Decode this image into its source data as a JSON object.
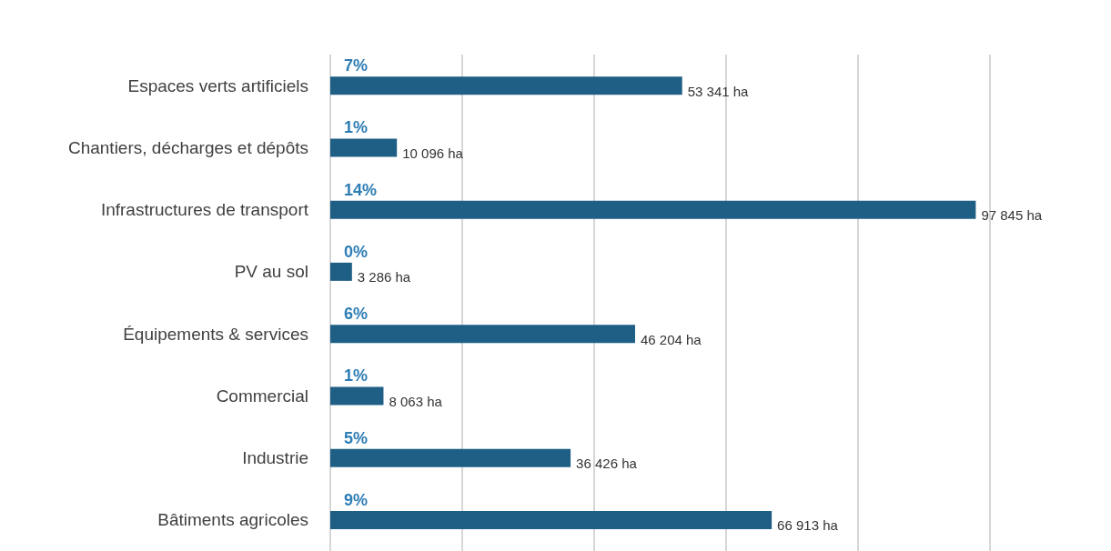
{
  "chart_data": {
    "type": "bar",
    "orientation": "horizontal",
    "categories": [
      "Espaces verts artificiels",
      "Chantiers, décharges et dépôts",
      "Infrastructures de transport",
      "PV au sol",
      "Équipements & services",
      "Commercial",
      "Industrie",
      "Bâtiments agricoles"
    ],
    "values": [
      53341,
      10096,
      97845,
      3286,
      46204,
      8063,
      36426,
      66913
    ],
    "value_labels": [
      "53 341 ha",
      "10 096 ha",
      "97 845 ha",
      "3 286 ha",
      "46 204 ha",
      "8 063 ha",
      "36 426 ha",
      "66 913 ha"
    ],
    "color": "#1f5f86",
    "xlim": [
      0,
      100000
    ],
    "xticks": [
      {
        "value": 0,
        "label": null
      },
      {
        "value": 20000,
        "label": null
      },
      {
        "value": 40000,
        "label": null
      },
      {
        "value": 60000,
        "label": null
      },
      {
        "value": 80000,
        "label": null
      },
      {
        "value": 100000,
        "label": null
      }
    ],
    "tick_labels": "y",
    "grid": "x",
    "annotations": [
      "7%",
      "1%",
      "14%",
      "0%",
      "6%",
      "1%",
      "5%",
      "9%"
    ]
  }
}
